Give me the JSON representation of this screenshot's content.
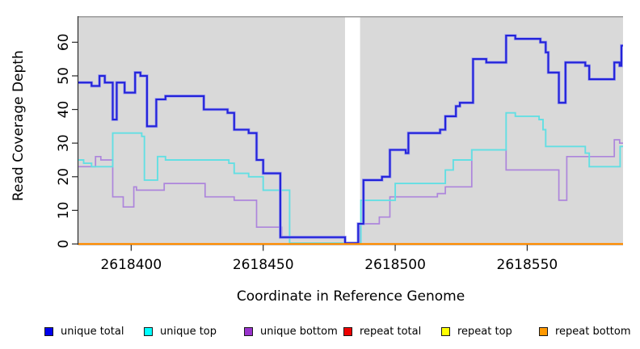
{
  "chart_data": {
    "type": "line",
    "subtype": "step",
    "title": "",
    "xlabel": "Coordinate in Reference Genome",
    "ylabel": "Read Coverage Depth",
    "xlim": [
      2618380,
      2618586.3
    ],
    "ylim": [
      0,
      67.8
    ],
    "x_ticks": [
      "2618400",
      "2618450",
      "2618500",
      "2618550"
    ],
    "x_tick_values": [
      2618400,
      2618450,
      2618500,
      2618550
    ],
    "y_ticks": [
      "0",
      "10",
      "20",
      "30",
      "40",
      "50",
      "60"
    ],
    "y_tick_values": [
      0,
      10,
      20,
      30,
      40,
      50,
      60
    ],
    "grid": false,
    "plot_bg_color": "#d9d9d9",
    "gap_region": {
      "x0": 2618481,
      "x1": 2618486.7,
      "color": "#ffffff"
    },
    "legend_position": "bottom",
    "legend": [
      {
        "label": "unique total",
        "color": "#0000ee"
      },
      {
        "label": "unique top",
        "color": "#00ffff"
      },
      {
        "label": "unique bottom",
        "color": "#9933cc"
      },
      {
        "label": "repeat total",
        "color": "#ee0000"
      },
      {
        "label": "repeat top",
        "color": "#ffff00"
      },
      {
        "label": "repeat bottom",
        "color": "#ff9900"
      }
    ],
    "series": [
      {
        "name": "repeat total",
        "color": "#cc0000",
        "points": [
          [
            2618380,
            0
          ]
        ]
      },
      {
        "name": "repeat top",
        "color": "#ffff00",
        "points": [
          [
            2618380,
            0
          ]
        ]
      },
      {
        "name": "unique bottom",
        "color": "#ad85dc",
        "points": [
          [
            2618380,
            23
          ],
          [
            2618386.5,
            26
          ],
          [
            2618388.5,
            25
          ],
          [
            2618393,
            14
          ],
          [
            2618397,
            11
          ],
          [
            2618401,
            17
          ],
          [
            2618402,
            16
          ],
          [
            2618412.5,
            18
          ],
          [
            2618428,
            14
          ],
          [
            2618439,
            13
          ],
          [
            2618447.5,
            5
          ],
          [
            2618457,
            2
          ],
          [
            2618481,
            0
          ],
          [
            2618486.5,
            6
          ],
          [
            2618494,
            8
          ],
          [
            2618498,
            14
          ],
          [
            2618516,
            15
          ],
          [
            2618519,
            17
          ],
          [
            2618529,
            28
          ],
          [
            2618542,
            22
          ],
          [
            2618562,
            13
          ],
          [
            2618565,
            26
          ],
          [
            2618583,
            31
          ],
          [
            2618585,
            30
          ]
        ]
      },
      {
        "name": "unique top",
        "color": "#63dfe3",
        "points": [
          [
            2618380,
            25
          ],
          [
            2618382,
            24
          ],
          [
            2618385,
            23
          ],
          [
            2618393,
            33
          ],
          [
            2618404,
            32
          ],
          [
            2618405,
            19
          ],
          [
            2618410,
            26
          ],
          [
            2618413,
            25
          ],
          [
            2618437,
            24
          ],
          [
            2618439,
            21
          ],
          [
            2618444.5,
            20
          ],
          [
            2618450,
            16
          ],
          [
            2618460,
            0
          ],
          [
            2618487,
            13
          ],
          [
            2618500,
            18
          ],
          [
            2618519,
            22
          ],
          [
            2618522,
            25
          ],
          [
            2618529,
            28
          ],
          [
            2618542,
            39
          ],
          [
            2618545.5,
            38
          ],
          [
            2618554.5,
            37
          ],
          [
            2618556,
            34
          ],
          [
            2618557,
            29
          ],
          [
            2618572,
            27
          ],
          [
            2618573.5,
            23
          ],
          [
            2618585.2,
            29
          ]
        ]
      },
      {
        "name": "unique total",
        "color": "#2323d9",
        "points": [
          [
            2618380,
            48
          ],
          [
            2618385,
            47
          ],
          [
            2618388,
            50
          ],
          [
            2618390,
            48
          ],
          [
            2618393,
            37
          ],
          [
            2618394.5,
            48
          ],
          [
            2618397.5,
            45
          ],
          [
            2618401.5,
            51
          ],
          [
            2618403.5,
            50
          ],
          [
            2618406,
            35
          ],
          [
            2618409.5,
            43
          ],
          [
            2618413,
            44
          ],
          [
            2618427.5,
            40
          ],
          [
            2618436.5,
            39
          ],
          [
            2618439,
            34
          ],
          [
            2618444.5,
            33
          ],
          [
            2618447.5,
            25
          ],
          [
            2618450,
            21
          ],
          [
            2618456.5,
            2
          ],
          [
            2618481,
            0
          ],
          [
            2618486,
            6
          ],
          [
            2618488,
            19
          ],
          [
            2618495,
            20
          ],
          [
            2618498,
            28
          ],
          [
            2618504,
            27
          ],
          [
            2618505,
            33
          ],
          [
            2618517,
            34
          ],
          [
            2618519,
            38
          ],
          [
            2618523,
            41
          ],
          [
            2618524.5,
            42
          ],
          [
            2618529.5,
            55
          ],
          [
            2618534.5,
            54
          ],
          [
            2618542,
            62
          ],
          [
            2618545.5,
            61
          ],
          [
            2618555,
            60
          ],
          [
            2618557,
            57
          ],
          [
            2618558,
            51
          ],
          [
            2618562,
            42
          ],
          [
            2618564.5,
            54
          ],
          [
            2618572,
            53
          ],
          [
            2618573.5,
            49
          ],
          [
            2618583,
            54
          ],
          [
            2618585,
            53
          ],
          [
            2618585.7,
            59
          ]
        ]
      },
      {
        "name": "repeat bottom",
        "color": "#ff8c00",
        "points": [
          [
            2618380,
            0
          ]
        ]
      }
    ]
  }
}
